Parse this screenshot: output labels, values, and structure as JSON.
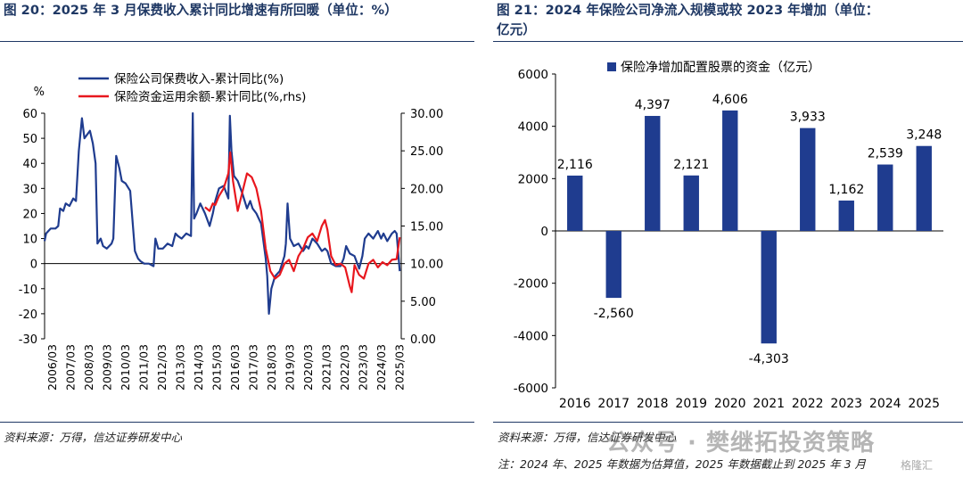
{
  "left": {
    "title": "图 20：2025 年 3 月保费收入累计同比增速有所回暖（单位：%）",
    "source": "资料来源：万得，信达证券研发中心"
  },
  "right": {
    "title_line1": "图 21：2024 年保险公司净流入规模或较 2023 年增加（单位：",
    "title_line2": "亿元）",
    "source": "资料来源：万得，信达证券研发中心",
    "note": "注：2024 年、2025 年数据为估算值，2025 年数据截止到 2025 年 3 月"
  },
  "watermark": {
    "text": "公众号 · 樊继拓投资策略",
    "corner": "格隆汇"
  },
  "chart_data": [
    {
      "type": "line",
      "title": "",
      "unit_label": "%",
      "xlabel": "",
      "ylabel": "",
      "ylim": [
        -30,
        60
      ],
      "yticks": [
        "-30",
        "-20",
        "-10",
        "0",
        "10",
        "20",
        "30",
        "40",
        "50",
        "60"
      ],
      "y2lim": [
        0,
        30
      ],
      "y2ticks": [
        "0.00",
        "5.00",
        "10.00",
        "15.00",
        "20.00",
        "25.00",
        "30.00"
      ],
      "xlim": [
        2006.17,
        2025.25
      ],
      "xticks": [
        "2006/03",
        "2007/03",
        "2008/03",
        "2009/03",
        "2010/03",
        "2011/03",
        "2012/03",
        "2013/03",
        "2014/03",
        "2015/03",
        "2016/03",
        "2017/03",
        "2018/03",
        "2019/03",
        "2020/03",
        "2021/03",
        "2022/03",
        "2023/03",
        "2024/03",
        "2025/03"
      ],
      "legend_position": "top-left",
      "grid": false,
      "series": [
        {
          "name": "保险公司保费收入-累计同比(%)",
          "axis": "left",
          "color": "#1f3c8f",
          "x": [
            2006.17,
            2006.25,
            2006.5,
            2006.75,
            2006.9,
            2007.0,
            2007.17,
            2007.3,
            2007.5,
            2007.7,
            2007.85,
            2008.0,
            2008.17,
            2008.3,
            2008.5,
            2008.6,
            2008.75,
            2008.9,
            2009.0,
            2009.17,
            2009.3,
            2009.5,
            2009.75,
            2009.85,
            2010.0,
            2010.17,
            2010.3,
            2010.5,
            2010.75,
            2011.0,
            2011.17,
            2011.3,
            2011.5,
            2011.75,
            2012.0,
            2012.1,
            2012.25,
            2012.5,
            2012.75,
            2013.0,
            2013.17,
            2013.3,
            2013.5,
            2013.75,
            2014.0,
            2014.1,
            2014.17,
            2014.3,
            2014.5,
            2014.75,
            2015.0,
            2015.17,
            2015.3,
            2015.5,
            2015.75,
            2016.0,
            2016.08,
            2016.17,
            2016.3,
            2016.5,
            2016.75,
            2017.0,
            2017.17,
            2017.3,
            2017.5,
            2017.75,
            2018.0,
            2018.08,
            2018.17,
            2018.3,
            2018.5,
            2018.75,
            2019.0,
            2019.08,
            2019.17,
            2019.3,
            2019.5,
            2019.75,
            2020.0,
            2020.17,
            2020.3,
            2020.5,
            2020.75,
            2021.0,
            2021.17,
            2021.3,
            2021.5,
            2021.75,
            2022.0,
            2022.17,
            2022.3,
            2022.5,
            2022.75,
            2023.0,
            2023.17,
            2023.3,
            2023.5,
            2023.75,
            2024.0,
            2024.17,
            2024.3,
            2024.5,
            2024.75,
            2024.9,
            2025.0,
            2025.17
          ],
          "y": [
            9,
            12,
            14,
            14,
            15,
            22,
            21,
            24,
            23,
            26,
            25,
            45,
            58,
            50,
            52,
            53,
            48,
            40,
            8,
            10,
            7,
            6,
            8,
            10,
            43,
            38,
            33,
            32,
            29,
            5,
            2,
            1,
            0,
            0,
            -1,
            10,
            6,
            6,
            8,
            7,
            12,
            11,
            10,
            12,
            11,
            60,
            18,
            20,
            24,
            20,
            15,
            20,
            25,
            30,
            31,
            26,
            59,
            45,
            35,
            33,
            28,
            22,
            25,
            22,
            20,
            16,
            2,
            -5,
            -20,
            -10,
            -5,
            -3,
            3,
            8,
            24,
            10,
            7,
            8,
            5,
            7,
            6,
            10,
            8,
            5,
            6,
            5,
            0,
            -1,
            -1,
            2,
            7,
            4,
            3,
            -2,
            3,
            10,
            12,
            10,
            13,
            10,
            12,
            9,
            12,
            13,
            12,
            -3
          ]
        },
        {
          "name": "保险资金运用余额-累计同比(%,rhs)",
          "axis": "right",
          "color": "#e8171e",
          "x": [
            2014.75,
            2015.0,
            2015.17,
            2015.3,
            2015.5,
            2015.75,
            2016.0,
            2016.1,
            2016.25,
            2016.5,
            2016.75,
            2017.0,
            2017.25,
            2017.5,
            2017.75,
            2018.0,
            2018.25,
            2018.5,
            2018.75,
            2019.0,
            2019.25,
            2019.5,
            2019.75,
            2020.0,
            2020.25,
            2020.5,
            2020.75,
            2021.0,
            2021.17,
            2021.3,
            2021.5,
            2021.75,
            2022.0,
            2022.25,
            2022.5,
            2022.6,
            2022.75,
            2023.0,
            2023.25,
            2023.5,
            2023.75,
            2024.0,
            2024.25,
            2024.5,
            2024.75,
            2025.0,
            2025.17
          ],
          "y": [
            17.5,
            17,
            18,
            17.8,
            19,
            20,
            22,
            24.8,
            21,
            17,
            19.5,
            22,
            21.5,
            20,
            17,
            12,
            9,
            8,
            8.5,
            10,
            10.5,
            9,
            11,
            12,
            13.5,
            14,
            13,
            15,
            15.8,
            14.5,
            11,
            9.8,
            10,
            9.5,
            7,
            6.2,
            9.8,
            8.5,
            8,
            10,
            10.5,
            9.5,
            10.2,
            9.8,
            10.5,
            10.6,
            13.5
          ]
        }
      ]
    },
    {
      "type": "bar",
      "title": "",
      "xlabel": "",
      "ylabel": "",
      "ylim": [
        -6000,
        6000
      ],
      "yticks": [
        "-6000",
        "-4000",
        "-2000",
        "0",
        "2000",
        "4000",
        "6000"
      ],
      "legend_position": "top-left",
      "grid": false,
      "color": "#1f3c8f",
      "categories": [
        "2016",
        "2017",
        "2018",
        "2019",
        "2020",
        "2021",
        "2022",
        "2023",
        "2024",
        "2025"
      ],
      "series": [
        {
          "name": "保险净增加配置股票的资金（亿元）",
          "values": [
            2116,
            -2560,
            4397,
            2121,
            4606,
            -4303,
            3933,
            1162,
            2539,
            3248
          ],
          "labels": [
            "2,116",
            "-2,560",
            "4,397",
            "2,121",
            "4,606",
            "-4,303",
            "3,933",
            "1,162",
            "2,539",
            "3,248"
          ]
        }
      ]
    }
  ]
}
